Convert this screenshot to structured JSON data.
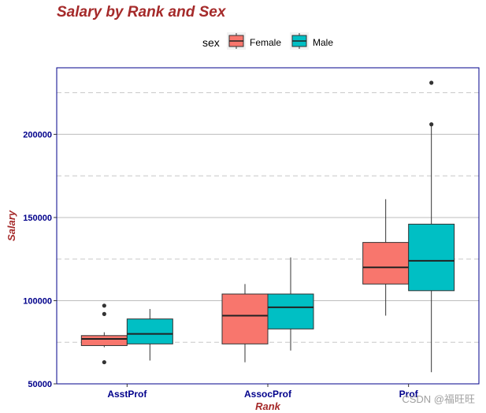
{
  "chart_data": {
    "type": "box",
    "title": "Salary by Rank and Sex",
    "xlabel": "Rank",
    "ylabel": "Salary",
    "ylim": [
      50000,
      240000
    ],
    "yticks": [
      50000,
      100000,
      150000,
      200000
    ],
    "ytick_labels": [
      "50000",
      "100000",
      "150000",
      "200000"
    ],
    "categories": [
      "AsstProf",
      "AssocProf",
      "Prof"
    ],
    "legend": {
      "title": "sex",
      "placement": "top"
    },
    "grid": {
      "major": "solid",
      "minor": "dashed"
    },
    "series": [
      {
        "name": "Female",
        "color": "#f8766d",
        "boxes": [
          {
            "category": "AsstProf",
            "min": 72000,
            "q1": 73000,
            "median": 77000,
            "q3": 79000,
            "max": 81000,
            "outliers": [
              97000,
              92000,
              63000
            ]
          },
          {
            "category": "AssocProf",
            "min": 63000,
            "q1": 74000,
            "median": 91000,
            "q3": 104000,
            "max": 110000,
            "outliers": []
          },
          {
            "category": "Prof",
            "min": 91000,
            "q1": 110000,
            "median": 120000,
            "q3": 135000,
            "max": 161000,
            "outliers": []
          }
        ]
      },
      {
        "name": "Male",
        "color": "#00bfc4",
        "boxes": [
          {
            "category": "AsstProf",
            "min": 64000,
            "q1": 74000,
            "median": 80000,
            "q3": 89000,
            "max": 95000,
            "outliers": []
          },
          {
            "category": "AssocProf",
            "min": 70000,
            "q1": 83000,
            "median": 96000,
            "q3": 104000,
            "max": 126000,
            "outliers": []
          },
          {
            "category": "Prof",
            "min": 57000,
            "q1": 106000,
            "median": 124000,
            "q3": 146000,
            "max": 205000,
            "outliers": [
              206000,
              231000
            ]
          }
        ]
      }
    ]
  },
  "watermark": "CSDN @福旺旺"
}
